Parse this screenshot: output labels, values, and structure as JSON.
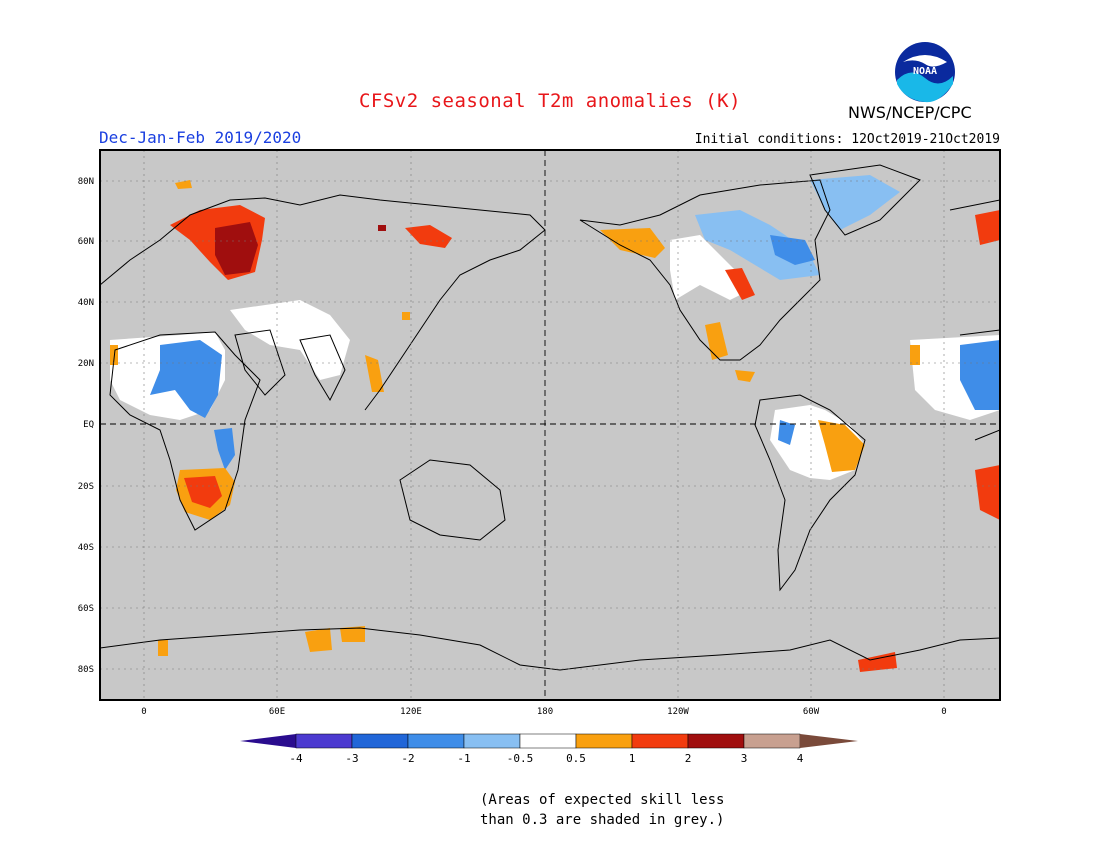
{
  "header": {
    "title": "CFSv2 seasonal T2m anomalies (K)",
    "agency": "NWS/NCEP/CPC",
    "logo_text": "NOAA",
    "season": "Dec-Jan-Feb 2019/2020",
    "initial_conditions": "Initial conditions: 12Oct2019-21Oct2019"
  },
  "map": {
    "projection": "equirectangular",
    "lat_labels": [
      "80N",
      "60N",
      "40N",
      "20N",
      "EQ",
      "20S",
      "40S",
      "60S",
      "80S"
    ],
    "lon_labels": [
      "0",
      "60E",
      "120E",
      "180",
      "120W",
      "60W",
      "0"
    ],
    "land_no_skill_color": "#c8c8c8"
  },
  "colorbar": {
    "tick_labels": [
      "-4",
      "-3",
      "-2",
      "-1",
      "-0.5",
      "0.5",
      "1",
      "2",
      "3",
      "4"
    ],
    "colors": [
      "#2a0c8e",
      "#4c3ad0",
      "#2166d8",
      "#3f8de8",
      "#88bff2",
      "#ffffff",
      "#f9a010",
      "#f23b0e",
      "#a00e0e",
      "#c8a090",
      "#7a4a3a"
    ]
  },
  "footnote": {
    "line1": "(Areas of expected skill less",
    "line2": "than 0.3 are shaded in grey.)"
  }
}
